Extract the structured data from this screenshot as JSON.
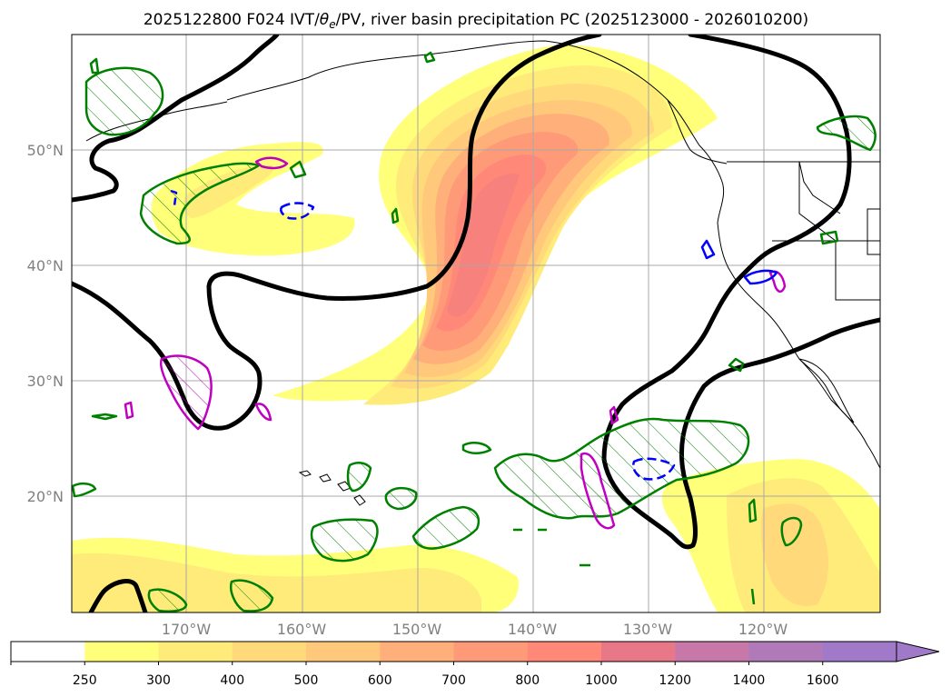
{
  "chart_data": {
    "type": "filled-contour-map",
    "title": "2025122800 F024 IVT/θe/PV, river basin precipitation PC (2025123000 - 2026010200)",
    "title_parts": {
      "pre": "2025122800 F024 IVT/",
      "theta": "θ",
      "sub": "e",
      "post": "/PV, river basin precipitation PC (2025123000 - 2026010200)"
    },
    "x_ticks": [
      {
        "lon": -170,
        "label": "170°W"
      },
      {
        "lon": -160,
        "label": "160°W"
      },
      {
        "lon": -150,
        "label": "150°W"
      },
      {
        "lon": -140,
        "label": "140°W"
      },
      {
        "lon": -130,
        "label": "130°W"
      },
      {
        "lon": -120,
        "label": "120°W"
      }
    ],
    "y_ticks": [
      {
        "lat": 50,
        "label": "50°N"
      },
      {
        "lat": 40,
        "label": "40°N"
      },
      {
        "lat": 30,
        "label": "30°N"
      },
      {
        "lat": 20,
        "label": "20°N"
      }
    ],
    "lon_range": [
      -180,
      -110
    ],
    "lat_range": [
      10,
      60
    ],
    "colorbar": {
      "levels": [
        "250",
        "300",
        "400",
        "500",
        "600",
        "700",
        "800",
        "1000",
        "1200",
        "1400",
        "1600"
      ],
      "colors": [
        "#ffffff",
        "#ffff7a",
        "#ffeb7a",
        "#ffd97a",
        "#ffc87a",
        "#ffb07a",
        "#ff9a78",
        "#ff8878",
        "#e87888",
        "#c878a8",
        "#b07ab8",
        "#a07ac8"
      ],
      "extend": "max"
    }
  }
}
